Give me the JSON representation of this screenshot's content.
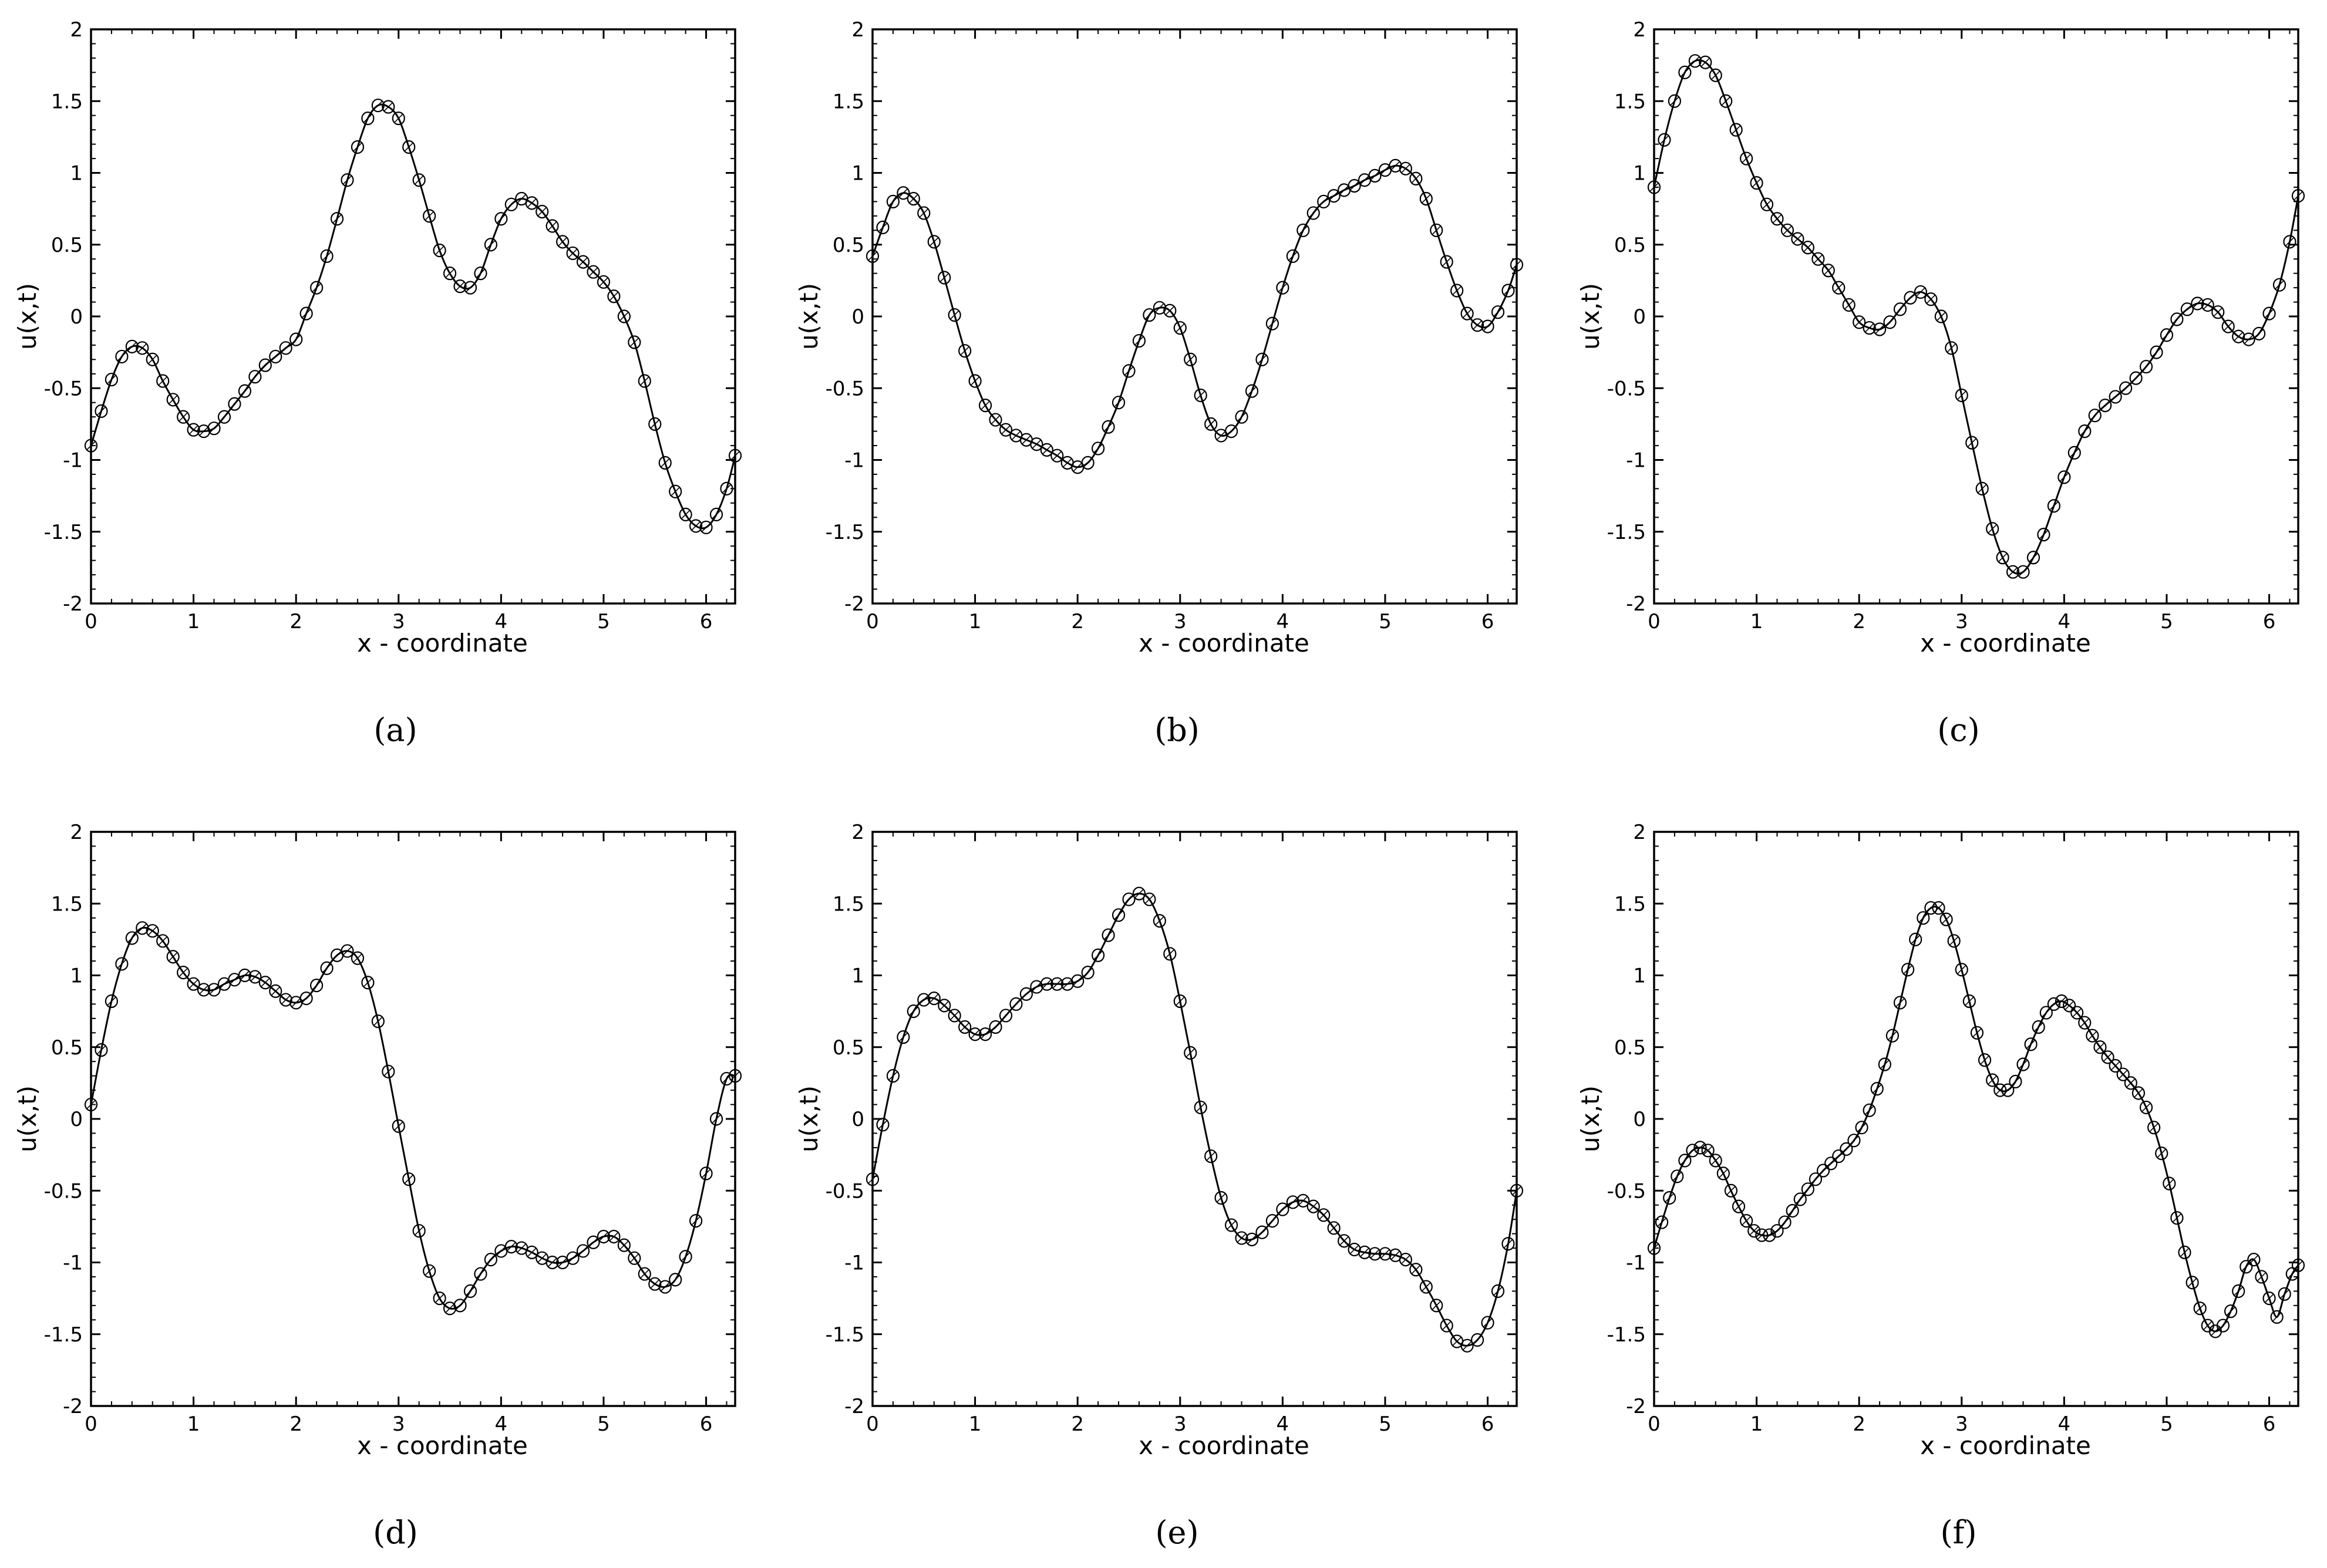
{
  "chart_data": [
    {
      "type": "line",
      "caption": "(a)",
      "xlabel": "x - coordinate",
      "ylabel": "u(x,t)",
      "xlim": [
        0,
        6.2832
      ],
      "ylim": [
        -2,
        2
      ],
      "xticks": [
        0,
        1,
        2,
        3,
        4,
        5,
        6
      ],
      "yticks": [
        -2,
        -1.5,
        -1,
        -0.5,
        0,
        0.5,
        1,
        1.5,
        2
      ],
      "series": [
        {
          "marker": "circle",
          "x": [
            0,
            0.1,
            0.2,
            0.3,
            0.4,
            0.5,
            0.6,
            0.7,
            0.8,
            0.9,
            1.0,
            1.1,
            1.2,
            1.3,
            1.4,
            1.5,
            1.6,
            1.7,
            1.8,
            1.9,
            2.0,
            2.1,
            2.2,
            2.3,
            2.4,
            2.5,
            2.6,
            2.7,
            2.8,
            2.9,
            3.0,
            3.1,
            3.2,
            3.3,
            3.4,
            3.5,
            3.6,
            3.7,
            3.8,
            3.9,
            4.0,
            4.1,
            4.2,
            4.3,
            4.4,
            4.5,
            4.6,
            4.7,
            4.8,
            4.9,
            5.0,
            5.1,
            5.2,
            5.3,
            5.4,
            5.5,
            5.6,
            5.7,
            5.8,
            5.9,
            6.0,
            6.1,
            6.2,
            6.2832
          ],
          "y": [
            -0.9,
            -0.66,
            -0.44,
            -0.28,
            -0.21,
            -0.22,
            -0.3,
            -0.45,
            -0.58,
            -0.7,
            -0.79,
            -0.8,
            -0.78,
            -0.7,
            -0.61,
            -0.52,
            -0.42,
            -0.34,
            -0.28,
            -0.22,
            -0.16,
            0.02,
            0.2,
            0.42,
            0.68,
            0.95,
            1.18,
            1.38,
            1.47,
            1.46,
            1.38,
            1.18,
            0.95,
            0.7,
            0.46,
            0.3,
            0.21,
            0.2,
            0.3,
            0.5,
            0.68,
            0.78,
            0.82,
            0.79,
            0.73,
            0.63,
            0.52,
            0.44,
            0.38,
            0.31,
            0.24,
            0.14,
            0.0,
            -0.18,
            -0.45,
            -0.75,
            -1.02,
            -1.22,
            -1.38,
            -1.46,
            -1.47,
            -1.38,
            -1.2,
            -0.97
          ]
        }
      ]
    },
    {
      "type": "line",
      "caption": "(b)",
      "xlabel": "x - coordinate",
      "ylabel": "u(x,t)",
      "xlim": [
        0,
        6.2832
      ],
      "ylim": [
        -2,
        2
      ],
      "xticks": [
        0,
        1,
        2,
        3,
        4,
        5,
        6
      ],
      "yticks": [
        -2,
        -1.5,
        -1,
        -0.5,
        0,
        0.5,
        1,
        1.5,
        2
      ],
      "series": [
        {
          "marker": "circle",
          "x": [
            0,
            0.1,
            0.2,
            0.3,
            0.4,
            0.5,
            0.6,
            0.7,
            0.8,
            0.9,
            1.0,
            1.1,
            1.2,
            1.3,
            1.4,
            1.5,
            1.6,
            1.7,
            1.8,
            1.9,
            2.0,
            2.1,
            2.2,
            2.3,
            2.4,
            2.5,
            2.6,
            2.7,
            2.8,
            2.9,
            3.0,
            3.1,
            3.2,
            3.3,
            3.4,
            3.5,
            3.6,
            3.7,
            3.8,
            3.9,
            4.0,
            4.1,
            4.2,
            4.3,
            4.4,
            4.5,
            4.6,
            4.7,
            4.8,
            4.9,
            5.0,
            5.1,
            5.2,
            5.3,
            5.4,
            5.5,
            5.6,
            5.7,
            5.8,
            5.9,
            6.0,
            6.1,
            6.2,
            6.2832
          ],
          "y": [
            0.42,
            0.62,
            0.8,
            0.86,
            0.82,
            0.72,
            0.52,
            0.27,
            0.01,
            -0.24,
            -0.45,
            -0.62,
            -0.72,
            -0.79,
            -0.83,
            -0.86,
            -0.89,
            -0.93,
            -0.97,
            -1.02,
            -1.05,
            -1.02,
            -0.92,
            -0.77,
            -0.6,
            -0.38,
            -0.17,
            0.01,
            0.06,
            0.04,
            -0.08,
            -0.3,
            -0.55,
            -0.75,
            -0.83,
            -0.8,
            -0.7,
            -0.52,
            -0.3,
            -0.05,
            0.2,
            0.42,
            0.6,
            0.72,
            0.8,
            0.84,
            0.88,
            0.91,
            0.95,
            0.98,
            1.02,
            1.05,
            1.03,
            0.96,
            0.82,
            0.6,
            0.38,
            0.18,
            0.02,
            -0.06,
            -0.07,
            0.03,
            0.18,
            0.36
          ]
        }
      ]
    },
    {
      "type": "line",
      "caption": "(c)",
      "xlabel": "x - coordinate",
      "ylabel": "u(x,t)",
      "xlim": [
        0,
        6.2832
      ],
      "ylim": [
        -2,
        2
      ],
      "xticks": [
        0,
        1,
        2,
        3,
        4,
        5,
        6
      ],
      "yticks": [
        -2,
        -1.5,
        -1,
        -0.5,
        0,
        0.5,
        1,
        1.5,
        2
      ],
      "series": [
        {
          "marker": "circle",
          "x": [
            0,
            0.1,
            0.2,
            0.3,
            0.4,
            0.5,
            0.6,
            0.7,
            0.8,
            0.9,
            1.0,
            1.1,
            1.2,
            1.3,
            1.4,
            1.5,
            1.6,
            1.7,
            1.8,
            1.9,
            2.0,
            2.1,
            2.2,
            2.3,
            2.4,
            2.5,
            2.6,
            2.7,
            2.8,
            2.9,
            3.0,
            3.1,
            3.2,
            3.3,
            3.4,
            3.5,
            3.6,
            3.7,
            3.8,
            3.9,
            4.0,
            4.1,
            4.2,
            4.3,
            4.4,
            4.5,
            4.6,
            4.7,
            4.8,
            4.9,
            5.0,
            5.1,
            5.2,
            5.3,
            5.4,
            5.5,
            5.6,
            5.7,
            5.8,
            5.9,
            6.0,
            6.1,
            6.2,
            6.2832
          ],
          "y": [
            0.9,
            1.23,
            1.5,
            1.7,
            1.78,
            1.77,
            1.68,
            1.5,
            1.3,
            1.1,
            0.93,
            0.78,
            0.68,
            0.6,
            0.54,
            0.48,
            0.4,
            0.32,
            0.2,
            0.08,
            -0.04,
            -0.08,
            -0.09,
            -0.04,
            0.05,
            0.13,
            0.17,
            0.12,
            0.0,
            -0.22,
            -0.55,
            -0.88,
            -1.2,
            -1.48,
            -1.68,
            -1.78,
            -1.78,
            -1.68,
            -1.52,
            -1.32,
            -1.12,
            -0.95,
            -0.8,
            -0.69,
            -0.62,
            -0.56,
            -0.5,
            -0.43,
            -0.35,
            -0.25,
            -0.13,
            -0.02,
            0.05,
            0.09,
            0.08,
            0.03,
            -0.07,
            -0.14,
            -0.16,
            -0.12,
            0.02,
            0.22,
            0.52,
            0.84
          ]
        }
      ]
    },
    {
      "type": "line",
      "caption": "(d)",
      "xlabel": "x - coordinate",
      "ylabel": "u(x,t)",
      "xlim": [
        0,
        6.2832
      ],
      "ylim": [
        -2,
        2
      ],
      "xticks": [
        0,
        1,
        2,
        3,
        4,
        5,
        6
      ],
      "yticks": [
        -2,
        -1.5,
        -1,
        -0.5,
        0,
        0.5,
        1,
        1.5,
        2
      ],
      "series": [
        {
          "marker": "circle",
          "x": [
            0,
            0.1,
            0.2,
            0.3,
            0.4,
            0.5,
            0.6,
            0.7,
            0.8,
            0.9,
            1.0,
            1.1,
            1.2,
            1.3,
            1.4,
            1.5,
            1.6,
            1.7,
            1.8,
            1.9,
            2.0,
            2.1,
            2.2,
            2.3,
            2.4,
            2.5,
            2.6,
            2.7,
            2.8,
            2.9,
            3.0,
            3.1,
            3.2,
            3.3,
            3.4,
            3.5,
            3.6,
            3.7,
            3.8,
            3.9,
            4.0,
            4.1,
            4.2,
            4.3,
            4.4,
            4.5,
            4.6,
            4.7,
            4.8,
            4.9,
            5.0,
            5.1,
            5.2,
            5.3,
            5.4,
            5.5,
            5.6,
            5.7,
            5.8,
            5.9,
            6.0,
            6.1,
            6.2,
            6.2832
          ],
          "y": [
            0.1,
            0.48,
            0.82,
            1.08,
            1.26,
            1.33,
            1.31,
            1.24,
            1.13,
            1.02,
            0.94,
            0.9,
            0.9,
            0.94,
            0.97,
            1.0,
            0.99,
            0.95,
            0.89,
            0.83,
            0.81,
            0.84,
            0.93,
            1.05,
            1.14,
            1.17,
            1.12,
            0.95,
            0.68,
            0.33,
            -0.05,
            -0.42,
            -0.78,
            -1.06,
            -1.25,
            -1.32,
            -1.3,
            -1.2,
            -1.08,
            -0.98,
            -0.92,
            -0.89,
            -0.9,
            -0.93,
            -0.97,
            -1.0,
            -1.0,
            -0.97,
            -0.92,
            -0.86,
            -0.82,
            -0.82,
            -0.88,
            -0.97,
            -1.08,
            -1.15,
            -1.17,
            -1.12,
            -0.96,
            -0.71,
            -0.38,
            -0.0,
            0.28,
            0.3
          ]
        }
      ]
    },
    {
      "type": "line",
      "caption": "(e)",
      "xlabel": "x - coordinate",
      "ylabel": "u(x,t)",
      "xlim": [
        0,
        6.2832
      ],
      "ylim": [
        -2,
        2
      ],
      "xticks": [
        0,
        1,
        2,
        3,
        4,
        5,
        6
      ],
      "yticks": [
        -2,
        -1.5,
        -1,
        -0.5,
        0,
        0.5,
        1,
        1.5,
        2
      ],
      "series": [
        {
          "marker": "circle",
          "x": [
            0,
            0.1,
            0.2,
            0.3,
            0.4,
            0.5,
            0.6,
            0.7,
            0.8,
            0.9,
            1.0,
            1.1,
            1.2,
            1.3,
            1.4,
            1.5,
            1.6,
            1.7,
            1.8,
            1.9,
            2.0,
            2.1,
            2.2,
            2.3,
            2.4,
            2.5,
            2.6,
            2.7,
            2.8,
            2.9,
            3.0,
            3.1,
            3.2,
            3.3,
            3.4,
            3.5,
            3.6,
            3.7,
            3.8,
            3.9,
            4.0,
            4.1,
            4.2,
            4.3,
            4.4,
            4.5,
            4.6,
            4.7,
            4.8,
            4.9,
            5.0,
            5.1,
            5.2,
            5.3,
            5.4,
            5.5,
            5.6,
            5.7,
            5.8,
            5.9,
            6.0,
            6.1,
            6.2,
            6.2832
          ],
          "y": [
            -0.42,
            -0.04,
            0.3,
            0.57,
            0.75,
            0.83,
            0.84,
            0.79,
            0.72,
            0.64,
            0.59,
            0.59,
            0.64,
            0.72,
            0.8,
            0.87,
            0.92,
            0.94,
            0.94,
            0.94,
            0.96,
            1.02,
            1.14,
            1.28,
            1.42,
            1.53,
            1.57,
            1.53,
            1.38,
            1.15,
            0.82,
            0.46,
            0.08,
            -0.26,
            -0.55,
            -0.74,
            -0.83,
            -0.84,
            -0.79,
            -0.71,
            -0.63,
            -0.58,
            -0.57,
            -0.61,
            -0.67,
            -0.76,
            -0.85,
            -0.91,
            -0.93,
            -0.94,
            -0.94,
            -0.95,
            -0.98,
            -1.05,
            -1.17,
            -1.3,
            -1.44,
            -1.55,
            -1.58,
            -1.54,
            -1.42,
            -1.2,
            -0.87,
            -0.5
          ]
        }
      ]
    },
    {
      "type": "line",
      "caption": "(f)",
      "xlabel": "x - coordinate",
      "ylabel": "u(x,t)",
      "xlim": [
        0,
        6.2832
      ],
      "ylim": [
        -2,
        2
      ],
      "xticks": [
        0,
        1,
        2,
        3,
        4,
        5,
        6
      ],
      "yticks": [
        -2,
        -1.5,
        -1,
        -0.5,
        0,
        0.5,
        1,
        1.5,
        2
      ],
      "series": [
        {
          "marker": "circle",
          "x": [
            0,
            0.075,
            0.15,
            0.225,
            0.3,
            0.375,
            0.45,
            0.525,
            0.6,
            0.675,
            0.75,
            0.825,
            0.9,
            0.975,
            1.05,
            1.125,
            1.2,
            1.275,
            1.35,
            1.425,
            1.5,
            1.575,
            1.65,
            1.725,
            1.8,
            1.875,
            1.95,
            2.025,
            2.1,
            2.175,
            2.25,
            2.325,
            2.4,
            2.475,
            2.55,
            2.625,
            2.7,
            2.775,
            2.85,
            2.925,
            3.0,
            3.075,
            3.15,
            3.225,
            3.3,
            3.375,
            3.45,
            3.525,
            3.6,
            3.675,
            3.75,
            3.825,
            3.9,
            3.975,
            4.05,
            4.125,
            4.2,
            4.275,
            4.35,
            4.425,
            4.5,
            4.575,
            4.65,
            4.725,
            4.8,
            4.875,
            4.95,
            5.025,
            5.1,
            5.175,
            5.25,
            5.325,
            5.4,
            5.475,
            5.55,
            5.625,
            5.7,
            5.775,
            5.85,
            5.925,
            6.0,
            6.075,
            6.15,
            6.225,
            6.2832
          ],
          "y": [
            -0.9,
            -0.72,
            -0.55,
            -0.4,
            -0.29,
            -0.22,
            -0.2,
            -0.22,
            -0.29,
            -0.38,
            -0.5,
            -0.61,
            -0.71,
            -0.78,
            -0.81,
            -0.81,
            -0.78,
            -0.72,
            -0.64,
            -0.56,
            -0.49,
            -0.42,
            -0.36,
            -0.31,
            -0.26,
            -0.21,
            -0.15,
            -0.06,
            0.06,
            0.21,
            0.38,
            0.58,
            0.81,
            1.04,
            1.25,
            1.4,
            1.47,
            1.47,
            1.39,
            1.24,
            1.04,
            0.82,
            0.6,
            0.41,
            0.27,
            0.2,
            0.2,
            0.26,
            0.38,
            0.52,
            0.64,
            0.74,
            0.8,
            0.82,
            0.79,
            0.74,
            0.67,
            0.58,
            0.5,
            0.43,
            0.37,
            0.31,
            0.25,
            0.18,
            0.08,
            -0.06,
            -0.24,
            -0.45,
            -0.69,
            -0.93,
            -1.14,
            -1.32,
            -1.44,
            -1.48,
            -1.44,
            -1.34,
            -1.2,
            -1.03,
            -0.98,
            -1.1,
            -1.25,
            -1.38,
            -1.22,
            -1.08,
            -1.02
          ]
        }
      ]
    }
  ]
}
